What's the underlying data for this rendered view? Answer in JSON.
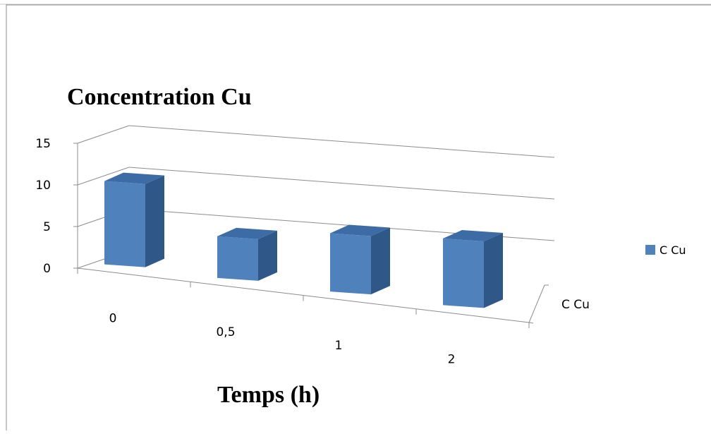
{
  "chart_data": {
    "type": "bar",
    "title": "Concentration Cu",
    "xlabel": "Temps (h)",
    "ylabel": "",
    "categories": [
      "0",
      "0,5",
      "1",
      "2"
    ],
    "series": [
      {
        "name": "C Cu",
        "values": [
          10,
          5,
          7,
          8
        ],
        "color": "#4F81BD"
      }
    ],
    "depth_label": "C Cu",
    "yticks": [
      "0",
      "5",
      "10",
      "15"
    ],
    "ylim": [
      0,
      15
    ],
    "grid": true,
    "legend": "right",
    "three_d": true
  }
}
